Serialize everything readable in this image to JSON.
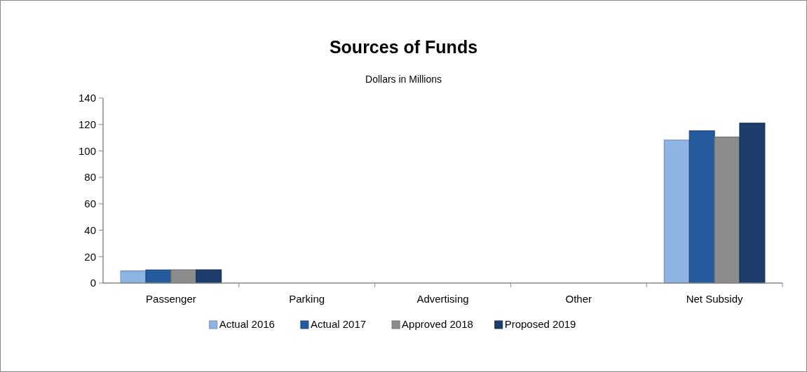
{
  "chart_data": {
    "type": "bar",
    "title": "Sources of Funds",
    "subtitle": "Dollars in Millions",
    "categories": [
      "Passenger",
      "Parking",
      "Advertising",
      "Other",
      "Net Subsidy"
    ],
    "series": [
      {
        "name": "Actual 2016",
        "color": "#8eb4e3",
        "values": [
          9.2,
          0,
          0,
          0,
          108.2
        ]
      },
      {
        "name": "Actual 2017",
        "color": "#255b9c",
        "values": [
          9.9,
          0,
          0,
          null,
          115.2
        ]
      },
      {
        "name": "Approved 2018",
        "color": "#8c8c8c",
        "values": [
          10,
          0,
          0,
          0,
          110.5
        ]
      },
      {
        "name": "Proposed 2019",
        "color": "#1c3d6b",
        "values": [
          10,
          0,
          0,
          0,
          121
        ]
      }
    ],
    "ylim": [
      0,
      140
    ],
    "yticks": [
      0,
      20,
      40,
      60,
      80,
      100,
      120,
      140
    ],
    "grid": false,
    "legend": "bottom"
  }
}
